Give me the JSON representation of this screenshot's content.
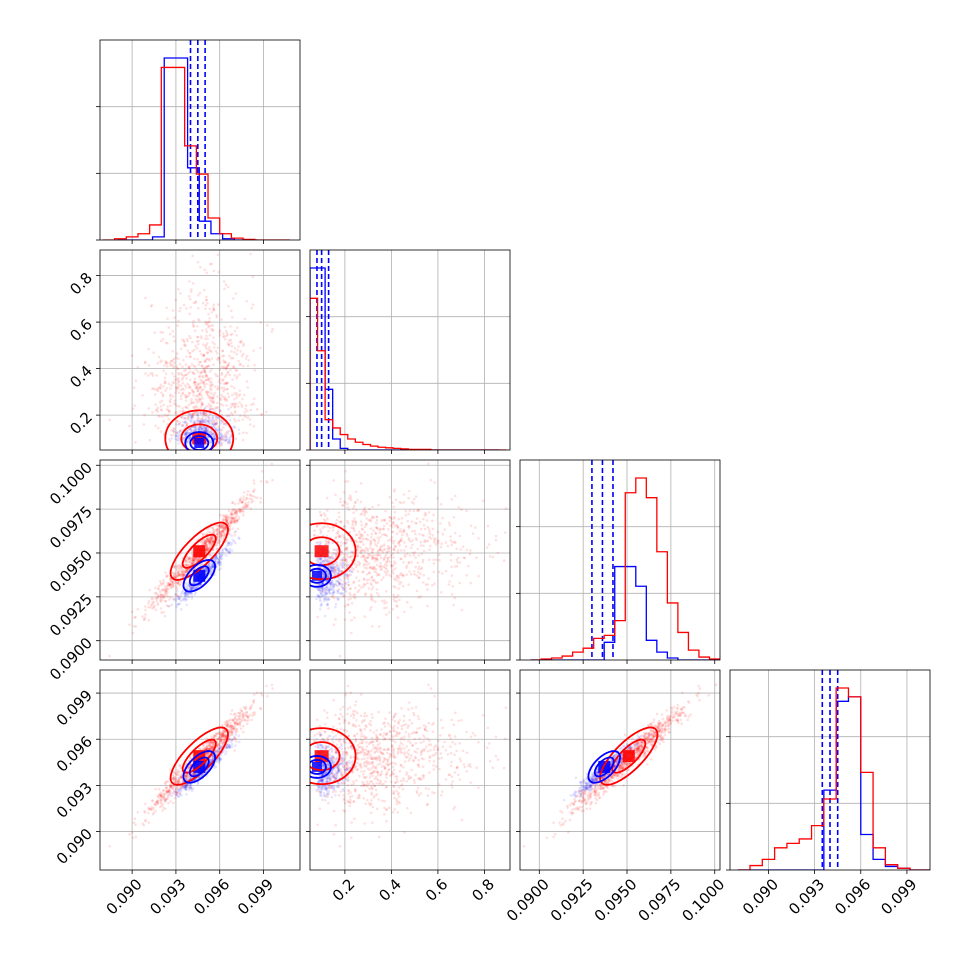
{
  "chart_data": {
    "type": "corner",
    "grid": true,
    "colors": {
      "blue": "#0000ff",
      "red": "#ff0000"
    },
    "params": [
      {
        "range": [
          0.0878,
          0.1015
        ],
        "ticks": [
          "0.090",
          "0.093",
          "0.096",
          "0.099"
        ],
        "tick_values": [
          0.09,
          0.093,
          0.096,
          0.099
        ]
      },
      {
        "range": [
          0.05,
          0.91
        ],
        "ticks": [
          "0.2",
          "0.4",
          "0.6",
          "0.8"
        ],
        "tick_values": [
          0.2,
          0.4,
          0.6,
          0.8
        ]
      },
      {
        "range": [
          0.0889,
          0.1003
        ],
        "ticks": [
          "0.0900",
          "0.0925",
          "0.0950",
          "0.0975",
          "0.1000"
        ],
        "tick_values": [
          0.09,
          0.0925,
          0.095,
          0.0975,
          0.1
        ]
      },
      {
        "range": [
          0.0875,
          0.1005
        ],
        "ticks": [
          "0.090",
          "0.093",
          "0.096",
          "0.099"
        ],
        "tick_values": [
          0.09,
          0.093,
          0.096,
          0.099
        ]
      }
    ],
    "series": [
      {
        "color": "blue",
        "hist": [
          {
            "start": 0.089,
            "width": 0.0008,
            "counts": [
              0,
              0,
              0,
              5,
              290,
              290,
              115,
              30,
              10,
              2,
              0,
              0
            ]
          },
          {
            "start": 0.05,
            "width": 0.0325,
            "counts": [
              330,
              330,
              110,
              20,
              3,
              0,
              0,
              0,
              0,
              0,
              0,
              0,
              0,
              0,
              0,
              0,
              0,
              0,
              0,
              0,
              0,
              0,
              0,
              0,
              0
            ]
          },
          {
            "start": 0.0895,
            "width": 0.0006,
            "counts": [
              0,
              0,
              0,
              0,
              0,
              0,
              0,
              18,
              95,
              95,
              75,
              20,
              8,
              2,
              0,
              0,
              0,
              0
            ]
          },
          {
            "start": 0.088,
            "width": 0.0008,
            "counts": [
              0,
              0,
              0,
              0,
              0,
              0,
              0,
              90,
              190,
              195,
              40,
              12,
              4,
              2,
              0,
              0
            ]
          }
        ],
        "quantiles": [
          [
            0.094,
            0.0945,
            0.095
          ],
          [
            0.08,
            0.1,
            0.13
          ],
          [
            0.093,
            0.0936,
            0.0942
          ],
          [
            0.0935,
            0.094,
            0.0945
          ]
        ]
      },
      {
        "color": "red",
        "hist": [
          {
            "start": 0.088,
            "width": 0.0008,
            "counts": [
              0,
              2,
              5,
              10,
              24,
              275,
              275,
              150,
              105,
              35,
              10,
              3,
              1,
              0,
              0,
              0
            ]
          },
          {
            "start": 0.05,
            "width": 0.0325,
            "counts": [
              275,
              180,
              55,
              40,
              28,
              20,
              14,
              10,
              7,
              5,
              4,
              3,
              2,
              1,
              1,
              1,
              0,
              0,
              0,
              0,
              0,
              0,
              0,
              0,
              0,
              0
            ]
          },
          {
            "start": 0.0895,
            "width": 0.0006,
            "counts": [
              0,
              1,
              2,
              4,
              8,
              12,
              22,
              25,
              40,
              170,
              185,
              165,
              110,
              58,
              28,
              10,
              3,
              1
            ]
          },
          {
            "start": 0.088,
            "width": 0.0008,
            "counts": [
              0,
              5,
              12,
              25,
              30,
              35,
              50,
              80,
              205,
              195,
              110,
              25,
              6,
              2,
              0,
              0
            ]
          }
        ]
      }
    ]
  }
}
